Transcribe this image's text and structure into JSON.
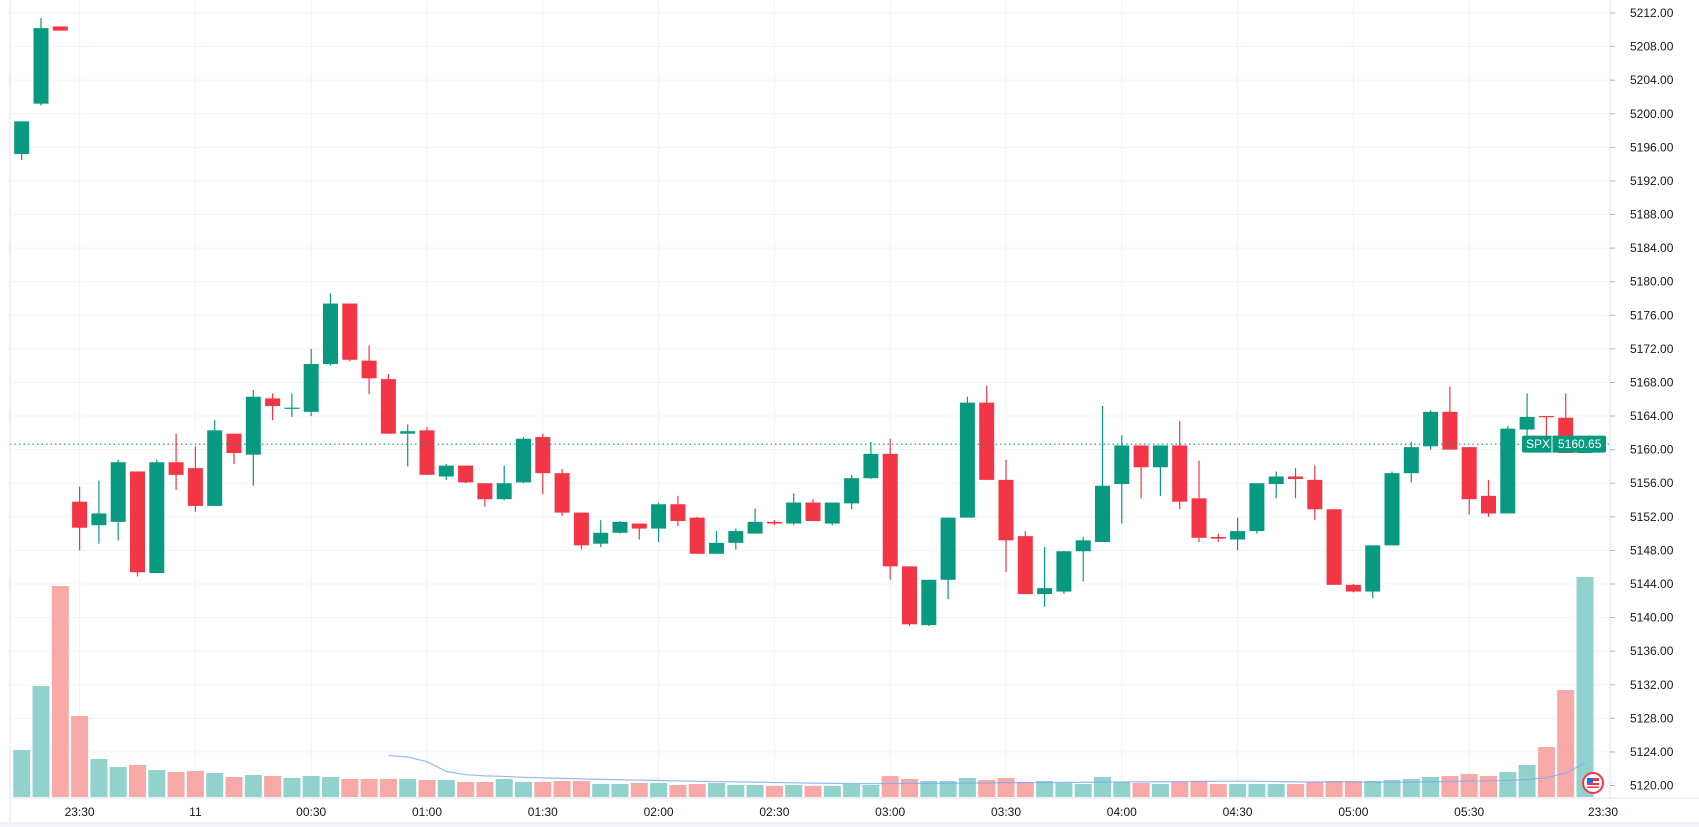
{
  "chart_data": {
    "type": "candlestick",
    "symbol": "SPX",
    "last_price": "5160.65",
    "interval_minutes": 5,
    "colors": {
      "up": "#089981",
      "down": "#F23645",
      "volume_up": "#92D2CC",
      "volume_down": "#F7A9A7",
      "volume_ma": "#7FA8F0",
      "grid": "#F0F3FA",
      "text": "#131722"
    },
    "ylim": [
      5118,
      5213
    ],
    "price_ticks": [
      "5212.00",
      "5208.00",
      "5204.00",
      "5200.00",
      "5196.00",
      "5192.00",
      "5188.00",
      "5184.00",
      "5180.00",
      "5176.00",
      "5172.00",
      "5168.00",
      "5164.00",
      "5160.00",
      "5156.00",
      "5152.00",
      "5148.00",
      "5144.00",
      "5140.00",
      "5136.00",
      "5132.00",
      "5128.00",
      "5124.00",
      "5120.00"
    ],
    "time_ticks": [
      {
        "index": 3,
        "label": "23:30"
      },
      {
        "index": 9,
        "label": "11"
      },
      {
        "index": 15,
        "label": "00:30"
      },
      {
        "index": 21,
        "label": "01:00"
      },
      {
        "index": 27,
        "label": "01:30"
      },
      {
        "index": 33,
        "label": "02:00"
      },
      {
        "index": 39,
        "label": "02:30"
      },
      {
        "index": 45,
        "label": "03:00"
      },
      {
        "index": 51,
        "label": "03:30"
      },
      {
        "index": 57,
        "label": "04:00"
      },
      {
        "index": 63,
        "label": "04:30"
      },
      {
        "index": 69,
        "label": "05:00"
      },
      {
        "index": 75,
        "label": "05:30"
      }
    ],
    "time_axis_end_label": "23:30",
    "volume_ma_length": 20,
    "ohlc": [
      [
        5195.2,
        5199.1,
        5194.5,
        5199.1
      ],
      [
        5201.2,
        5211.4,
        5201.0,
        5210.2
      ],
      [
        5210.4,
        5210.4,
        5209.9,
        5209.9
      ],
      [
        5153.8,
        5155.6,
        5148.0,
        5150.7
      ],
      [
        5151.0,
        5156.3,
        5148.8,
        5152.4
      ],
      [
        5151.4,
        5158.8,
        5149.2,
        5158.5
      ],
      [
        5157.4,
        5157.4,
        5144.9,
        5145.4
      ],
      [
        5145.3,
        5158.8,
        5145.3,
        5158.5
      ],
      [
        5158.5,
        5161.9,
        5155.2,
        5157.0
      ],
      [
        5157.8,
        5160.4,
        5152.6,
        5153.3
      ],
      [
        5153.3,
        5163.5,
        5153.3,
        5162.3
      ],
      [
        5161.9,
        5161.9,
        5158.3,
        5159.6
      ],
      [
        5159.4,
        5167.1,
        5155.7,
        5166.3
      ],
      [
        5166.1,
        5166.7,
        5163.5,
        5165.2
      ],
      [
        5164.9,
        5166.7,
        5163.9,
        5165.0
      ],
      [
        5164.5,
        5172.0,
        5164.0,
        5170.2
      ],
      [
        5170.2,
        5178.6,
        5170.0,
        5177.4
      ],
      [
        5177.4,
        5177.4,
        5170.5,
        5170.7
      ],
      [
        5170.6,
        5172.4,
        5166.6,
        5168.5
      ],
      [
        5168.4,
        5169.0,
        5161.9,
        5161.9
      ],
      [
        5161.9,
        5163.0,
        5158.0,
        5162.2
      ],
      [
        5162.3,
        5162.7,
        5157.0,
        5157.0
      ],
      [
        5156.8,
        5158.3,
        5156.4,
        5158.1
      ],
      [
        5158.1,
        5158.1,
        5156.0,
        5156.1
      ],
      [
        5156.0,
        5156.0,
        5153.2,
        5154.1
      ],
      [
        5154.1,
        5158.1,
        5154.0,
        5156.0
      ],
      [
        5156.1,
        5161.5,
        5156.0,
        5161.3
      ],
      [
        5161.5,
        5161.9,
        5154.7,
        5157.2
      ],
      [
        5157.2,
        5157.7,
        5152.1,
        5152.5
      ],
      [
        5152.5,
        5152.5,
        5148.1,
        5148.6
      ],
      [
        5148.8,
        5151.6,
        5148.4,
        5150.1
      ],
      [
        5150.1,
        5151.5,
        5150.0,
        5151.4
      ],
      [
        5151.2,
        5151.2,
        5149.3,
        5150.6
      ],
      [
        5150.6,
        5153.7,
        5149.0,
        5153.5
      ],
      [
        5153.5,
        5154.5,
        5150.9,
        5151.5
      ],
      [
        5151.9,
        5152.0,
        5147.6,
        5147.6
      ],
      [
        5147.6,
        5150.3,
        5147.6,
        5148.9
      ],
      [
        5148.9,
        5150.6,
        5148.1,
        5150.3
      ],
      [
        5150.0,
        5153.0,
        5150.0,
        5151.4
      ],
      [
        5151.4,
        5151.6,
        5151.0,
        5151.2
      ],
      [
        5151.2,
        5154.8,
        5151.0,
        5153.7
      ],
      [
        5153.7,
        5154.1,
        5151.5,
        5151.5
      ],
      [
        5151.2,
        5153.7,
        5151.0,
        5153.7
      ],
      [
        5153.6,
        5157.0,
        5152.9,
        5156.6
      ],
      [
        5156.6,
        5160.9,
        5156.5,
        5159.5
      ],
      [
        5159.5,
        5161.3,
        5144.5,
        5146.1
      ],
      [
        5146.1,
        5146.1,
        5139.0,
        5139.2
      ],
      [
        5139.1,
        5144.5,
        5139.0,
        5144.5
      ],
      [
        5144.5,
        5151.9,
        5142.2,
        5151.9
      ],
      [
        5151.9,
        5166.3,
        5151.9,
        5165.6
      ],
      [
        5165.6,
        5167.6,
        5156.4,
        5156.4
      ],
      [
        5156.4,
        5158.8,
        5145.4,
        5149.2
      ],
      [
        5149.7,
        5150.3,
        5142.8,
        5142.8
      ],
      [
        5142.8,
        5148.4,
        5141.3,
        5143.5
      ],
      [
        5143.1,
        5147.9,
        5142.8,
        5147.9
      ],
      [
        5147.9,
        5149.6,
        5144.3,
        5149.2
      ],
      [
        5149.0,
        5165.2,
        5149.0,
        5155.7
      ],
      [
        5155.9,
        5161.7,
        5151.2,
        5160.5
      ],
      [
        5160.5,
        5160.5,
        5154.2,
        5157.9
      ],
      [
        5157.9,
        5160.5,
        5154.5,
        5160.5
      ],
      [
        5160.5,
        5163.4,
        5152.9,
        5153.8
      ],
      [
        5154.2,
        5158.7,
        5149.0,
        5149.5
      ],
      [
        5149.6,
        5150.0,
        5149.0,
        5149.4
      ],
      [
        5149.3,
        5151.9,
        5148.0,
        5150.3
      ],
      [
        5150.3,
        5156.0,
        5150.0,
        5156.0
      ],
      [
        5155.9,
        5157.4,
        5154.2,
        5156.8
      ],
      [
        5156.8,
        5157.8,
        5154.2,
        5156.5
      ],
      [
        5156.4,
        5158.1,
        5151.6,
        5152.9
      ],
      [
        5152.9,
        5152.9,
        5143.9,
        5143.9
      ],
      [
        5143.9,
        5144.0,
        5143.0,
        5143.1
      ],
      [
        5143.1,
        5148.6,
        5142.3,
        5148.6
      ],
      [
        5148.6,
        5157.4,
        5148.6,
        5157.2
      ],
      [
        5157.2,
        5160.9,
        5156.1,
        5160.3
      ],
      [
        5160.4,
        5164.7,
        5160.0,
        5164.5
      ],
      [
        5164.5,
        5167.5,
        5160.0,
        5160.0
      ],
      [
        5160.3,
        5160.3,
        5152.3,
        5154.1
      ],
      [
        5154.5,
        5156.4,
        5152.0,
        5152.4
      ],
      [
        5152.4,
        5162.8,
        5152.4,
        5162.5
      ],
      [
        5162.4,
        5166.7,
        5160.9,
        5163.9
      ],
      [
        5164.0,
        5164.0,
        5160.1,
        5163.9
      ],
      [
        5163.8,
        5166.7,
        5159.6,
        5159.6
      ],
      [
        5159.6,
        5160.7,
        5159.6,
        5160.65
      ]
    ],
    "volume_relative": [
      47,
      111,
      211,
      81,
      38,
      30,
      32,
      27,
      25,
      26,
      24,
      20,
      22,
      21,
      19,
      21,
      20,
      18,
      18,
      18,
      18,
      17,
      17,
      15,
      15,
      18,
      15,
      15,
      16,
      16,
      13,
      13,
      14,
      14,
      12,
      13,
      14,
      12,
      12,
      11,
      12,
      11,
      11,
      13,
      12,
      21,
      18,
      16,
      16,
      19,
      17,
      19,
      15,
      16,
      14,
      13,
      20,
      15,
      14,
      13,
      15,
      16,
      13,
      13,
      13,
      13,
      13,
      15,
      16,
      16,
      16,
      17,
      18,
      20,
      21,
      23,
      21,
      25,
      32,
      50,
      107,
      220
    ]
  },
  "session_icon": "us-flag-icon"
}
